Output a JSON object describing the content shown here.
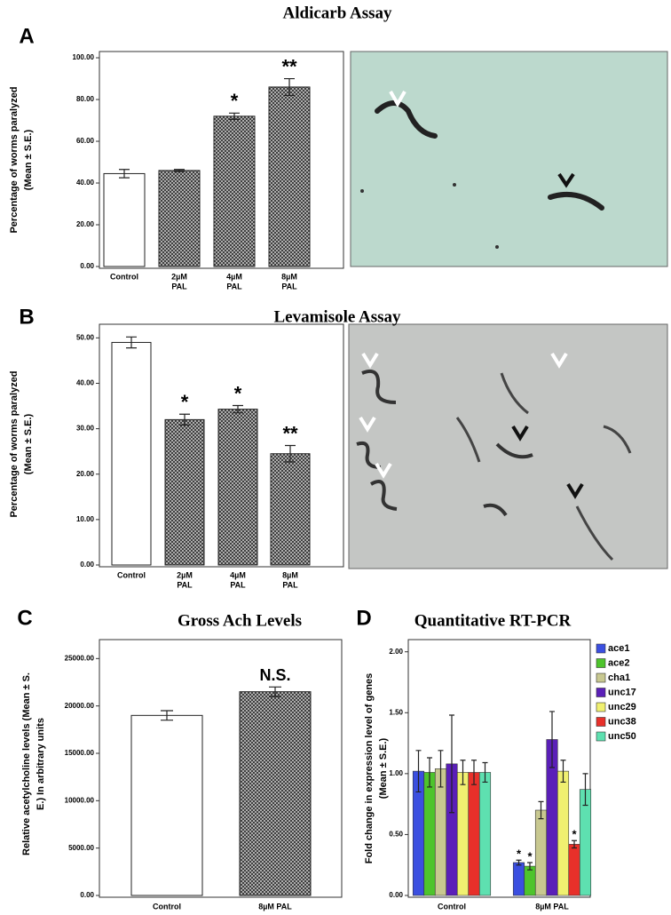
{
  "chart_data": [
    {
      "type": "bar",
      "panel_label": "A",
      "title": "Aldicarb Assay",
      "ylabel": [
        "Percentage of worms paralyzed",
        "(Mean ± S.E.)"
      ],
      "categories": [
        [
          "Control"
        ],
        [
          "2µM",
          "PAL"
        ],
        [
          "4µM",
          "PAL"
        ],
        [
          "8µM",
          "PAL"
        ]
      ],
      "values": [
        44.5,
        46,
        72,
        86
      ],
      "errors": [
        2,
        0.5,
        1.5,
        4
      ],
      "value_annotations": [
        null,
        null,
        "*",
        "**"
      ],
      "colors": [
        "#ffffff",
        "#333333",
        "#333333",
        "#333333"
      ],
      "pattern": "crosshatch",
      "ylim": [
        0,
        103
      ],
      "yticks": [
        {
          "value": 0,
          "label": "0.00"
        },
        {
          "value": 20,
          "label": "20.00"
        },
        {
          "value": 40,
          "label": "40.00"
        },
        {
          "value": 60,
          "label": "60.00"
        },
        {
          "value": 80,
          "label": "80.00"
        },
        {
          "value": 100,
          "label": "100.00"
        }
      ]
    },
    {
      "type": "bar",
      "panel_label": "B",
      "title": "Levamisole Assay",
      "ylabel": [
        "Percentage of worms paralyzed",
        "(Mean ± S.E.)"
      ],
      "categories": [
        [
          "Control"
        ],
        [
          "2µM",
          "PAL"
        ],
        [
          "4µM",
          "PAL"
        ],
        [
          "8µM",
          "PAL"
        ]
      ],
      "values": [
        49,
        32,
        34.3,
        24.5
      ],
      "errors": [
        1.2,
        1.2,
        0.8,
        1.8
      ],
      "value_annotations": [
        null,
        "*",
        "*",
        "**"
      ],
      "colors": [
        "#ffffff",
        "#333333",
        "#333333",
        "#333333"
      ],
      "pattern": "crosshatch",
      "ylim": [
        0,
        53
      ],
      "yticks": [
        {
          "value": 0,
          "label": "0.00"
        },
        {
          "value": 10,
          "label": "10.00"
        },
        {
          "value": 20,
          "label": "20.00"
        },
        {
          "value": 30,
          "label": "30.00"
        },
        {
          "value": 40,
          "label": "40.00"
        },
        {
          "value": 50,
          "label": "50.00"
        }
      ]
    },
    {
      "type": "bar",
      "panel_label": "C",
      "title": "Gross Ach Levels",
      "ylabel": [
        "Relative acetylcholine levels (Mean ± S.",
        "E.) In arbitrary units"
      ],
      "categories": [
        [
          "Control"
        ],
        [
          "8µM PAL"
        ]
      ],
      "values": [
        19000,
        21500
      ],
      "errors": [
        500,
        500
      ],
      "value_annotations": [
        null,
        "N.S."
      ],
      "colors": [
        "#ffffff",
        "#333333"
      ],
      "pattern": "crosshatch",
      "ylim": [
        0,
        27000
      ],
      "yticks": [
        {
          "value": 0,
          "label": "0.00"
        },
        {
          "value": 5000,
          "label": "5000.00"
        },
        {
          "value": 10000,
          "label": "10000.00"
        },
        {
          "value": 15000,
          "label": "15000.00"
        },
        {
          "value": 20000,
          "label": "20000.00"
        },
        {
          "value": 25000,
          "label": "25000.00"
        }
      ]
    },
    {
      "type": "grouped_bar",
      "panel_label": "D",
      "title": "Quantitative RT-PCR",
      "ylabel": [
        "Fold change in expression level of genes",
        "(Mean ± S.E.)"
      ],
      "categories": [
        [
          "Control"
        ],
        [
          "8µM PAL"
        ]
      ],
      "series": [
        {
          "name": "ace1",
          "color": "#3b4fe0",
          "values": [
            1.02,
            0.27
          ],
          "errors": [
            0.17,
            0.02
          ],
          "annotations": [
            null,
            "*"
          ]
        },
        {
          "name": "ace2",
          "color": "#4ec42c",
          "values": [
            1.01,
            0.24
          ],
          "errors": [
            0.12,
            0.03
          ],
          "annotations": [
            null,
            "*"
          ]
        },
        {
          "name": "cha1",
          "color": "#c8c890",
          "values": [
            1.04,
            0.7
          ],
          "errors": [
            0.15,
            0.07
          ],
          "annotations": [
            null,
            null
          ]
        },
        {
          "name": "unc17",
          "color": "#5a1fb8",
          "values": [
            1.08,
            1.28
          ],
          "errors": [
            0.4,
            0.23
          ],
          "annotations": [
            null,
            null
          ]
        },
        {
          "name": "unc29",
          "color": "#f0f070",
          "values": [
            1.01,
            1.02
          ],
          "errors": [
            0.1,
            0.09
          ],
          "annotations": [
            null,
            null
          ]
        },
        {
          "name": "unc38",
          "color": "#e8302a",
          "values": [
            1.01,
            0.42
          ],
          "errors": [
            0.1,
            0.03
          ],
          "annotations": [
            null,
            "*"
          ]
        },
        {
          "name": "unc50",
          "color": "#5ee0b0",
          "values": [
            1.01,
            0.87
          ],
          "errors": [
            0.08,
            0.13
          ],
          "annotations": [
            null,
            null
          ]
        }
      ],
      "ylim": [
        0,
        2.1
      ],
      "yticks": [
        {
          "value": 0,
          "label": "0.00"
        },
        {
          "value": 0.5,
          "label": "0.50"
        },
        {
          "value": 1,
          "label": "1.00"
        },
        {
          "value": 1.5,
          "label": "1.50"
        },
        {
          "value": 2,
          "label": "2.00"
        }
      ]
    }
  ]
}
